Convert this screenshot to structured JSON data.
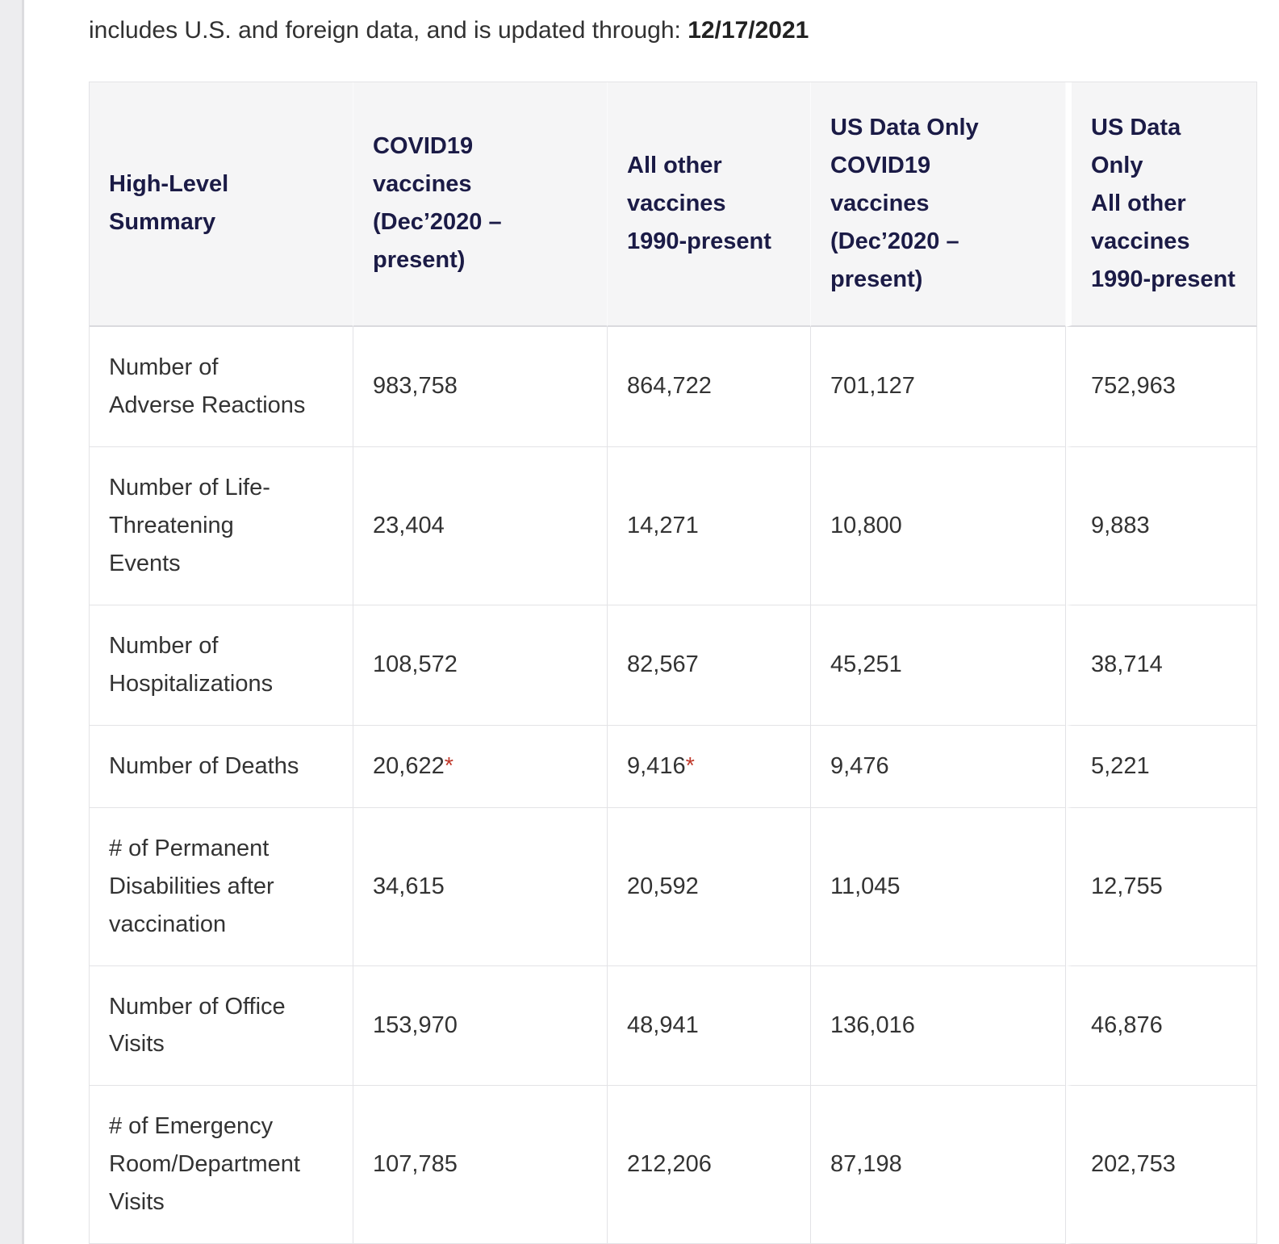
{
  "page": {
    "intro_text": "includes U.S. and foreign data, and is updated through: ",
    "intro_date": "12/17/2021"
  },
  "table": {
    "columns": [
      "High-Level\nSummary",
      "COVID19\nvaccines\n(Dec’2020 –\npresent)",
      "All other\nvaccines\n1990-present",
      "US Data Only\nCOVID19\nvaccines\n(Dec’2020 –\npresent)",
      "US Data Only\nAll other\nvaccines\n1990-present"
    ],
    "rows": [
      {
        "label": "Number of\nAdverse Reactions",
        "values": [
          "983,758",
          "864,722",
          "701,127",
          "752,963"
        ]
      },
      {
        "label": "Number of Life-\nThreatening\nEvents",
        "values": [
          "23,404",
          "14,271",
          "10,800",
          "9,883"
        ]
      },
      {
        "label": "Number of\nHospitalizations",
        "values": [
          "108,572",
          "82,567",
          "45,251",
          "38,714"
        ]
      },
      {
        "label": "Number of Deaths",
        "values": [
          "20,622*",
          "9,416*",
          "9,476",
          "5,221"
        ]
      },
      {
        "label": "# of Permanent\nDisabilities after\nvaccination",
        "values": [
          "34,615",
          "20,592",
          "11,045",
          "12,755"
        ]
      },
      {
        "label": "Number of Office\nVisits",
        "values": [
          "153,970",
          "48,941",
          "136,016",
          "46,876"
        ]
      },
      {
        "label": "# of Emergency\nRoom/Department\nVisits",
        "values": [
          "107,785",
          "212,206",
          "87,198",
          "202,753"
        ]
      }
    ]
  },
  "colors": {
    "header_bg": "#f5f5f6",
    "header_text": "#1b1b46",
    "asterisk": "#c0392b"
  }
}
